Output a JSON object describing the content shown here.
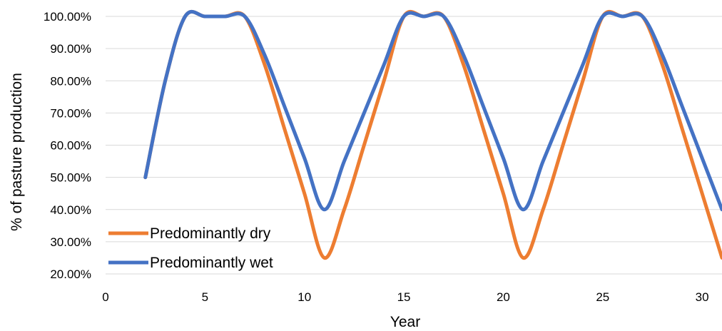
{
  "chart_data": {
    "type": "line",
    "title": "",
    "xlabel": "Year",
    "ylabel": "% of pasture production",
    "xlim": [
      0,
      31
    ],
    "ylim": [
      0.2,
      1.0
    ],
    "x_ticks": [
      0,
      5,
      10,
      15,
      20,
      25,
      30
    ],
    "x_tick_labels": [
      "0",
      "5",
      "10",
      "15",
      "20",
      "25",
      "30"
    ],
    "y_ticks": [
      0.2,
      0.3,
      0.4,
      0.5,
      0.6,
      0.7,
      0.8,
      0.9,
      1.0
    ],
    "y_tick_labels": [
      "20.00%",
      "30.00%",
      "40.00%",
      "50.00%",
      "60.00%",
      "70.00%",
      "80.00%",
      "90.00%",
      "100.00%"
    ],
    "grid": "horizontal",
    "legend_position": "bottom-left",
    "x": [
      2,
      3,
      4,
      5,
      6,
      7,
      8,
      9,
      10,
      11,
      12,
      13,
      14,
      15,
      16,
      17,
      18,
      19,
      20,
      21,
      22,
      23,
      24,
      25,
      26,
      27,
      28,
      29,
      30,
      31
    ],
    "series": [
      {
        "name": "Predominantly dry",
        "color": "#ED7D31",
        "values": [
          0.5,
          0.8,
          1.0,
          1.0,
          1.0,
          1.0,
          0.85,
          0.65,
          0.45,
          0.25,
          0.4,
          0.6,
          0.8,
          1.0,
          1.0,
          1.0,
          0.85,
          0.65,
          0.45,
          0.25,
          0.4,
          0.6,
          0.8,
          1.0,
          1.0,
          1.0,
          0.85,
          0.65,
          0.45,
          0.25
        ]
      },
      {
        "name": "Predominantly wet",
        "color": "#4472C4",
        "values": [
          0.5,
          0.8,
          1.0,
          1.0,
          1.0,
          1.0,
          0.88,
          0.72,
          0.56,
          0.4,
          0.55,
          0.7,
          0.85,
          1.0,
          1.0,
          1.0,
          0.88,
          0.72,
          0.56,
          0.4,
          0.55,
          0.7,
          0.85,
          1.0,
          1.0,
          1.0,
          0.88,
          0.72,
          0.56,
          0.4
        ]
      }
    ]
  }
}
